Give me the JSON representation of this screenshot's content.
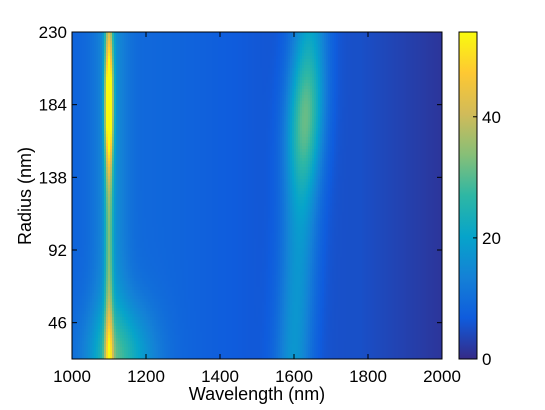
{
  "chart_data": {
    "type": "heatmap",
    "title": "",
    "xlabel": "Wavelength (nm)",
    "ylabel": "Radius (nm)",
    "xlim": [
      1000,
      2000
    ],
    "ylim": [
      23,
      230
    ],
    "x_ticks": [
      1000,
      1200,
      1400,
      1600,
      1800,
      2000
    ],
    "x_tick_labels": [
      "1000",
      "1200",
      "1400",
      "1600",
      "1800",
      "2000"
    ],
    "y_ticks": [
      46,
      92,
      138,
      184,
      230
    ],
    "y_tick_labels": [
      "46",
      "92",
      "138",
      "184",
      "230"
    ],
    "colorbar": {
      "range": [
        0,
        54
      ],
      "ticks": [
        0,
        20,
        40
      ],
      "tick_labels": [
        "0",
        "20",
        "40"
      ],
      "colormap": "parula"
    },
    "features": [
      {
        "description": "narrow resonance band",
        "center_wavelength_nm": 1100,
        "radius_range_nm": [
          23,
          230
        ],
        "peak_value": 54,
        "peak_radius_nm": 184
      },
      {
        "description": "broad resonance band",
        "center_wavelength_nm": 1630,
        "radius_range_nm": [
          23,
          230
        ],
        "peak_value": 30,
        "peak_radius_nm": 175
      },
      {
        "description": "low-radius broad region",
        "center_wavelength_nm": 1130,
        "radius_range_nm": [
          23,
          70
        ],
        "peak_value": 28,
        "peak_radius_nm": 25
      }
    ],
    "grid": false
  }
}
